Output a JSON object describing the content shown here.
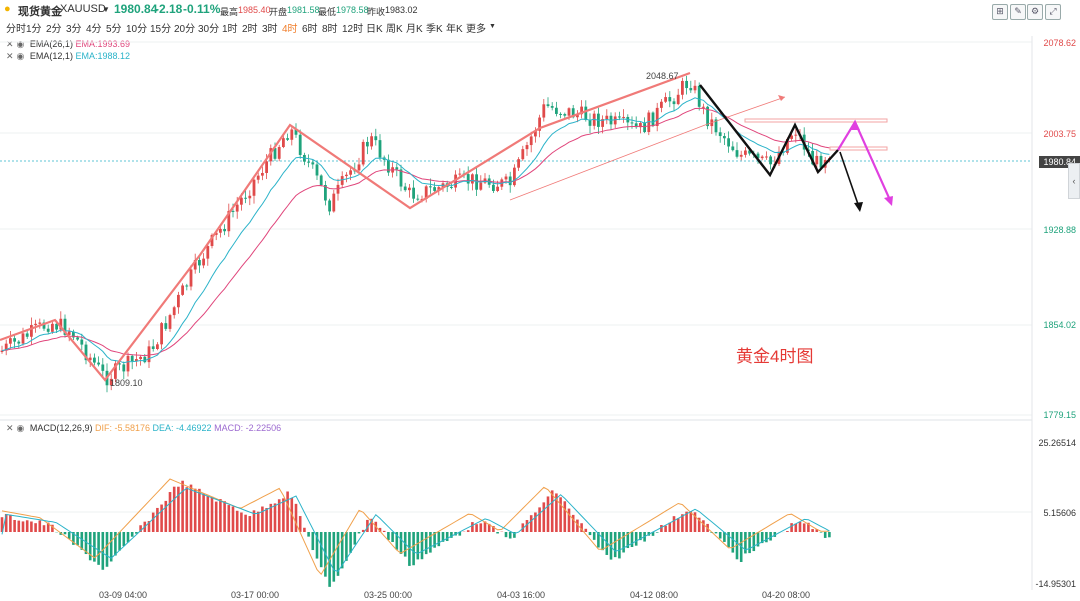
{
  "header": {
    "instrument_name": "现货黄金",
    "symbol": "XAUUSD",
    "price": "1980.84",
    "change": "-2.18",
    "change_pct": "-0.11%",
    "high_label": "最高",
    "high": "1985.40",
    "open_label": "开盘",
    "open": "1981.58",
    "low_label": "最低",
    "low": "1978.58",
    "prev_close_label": "昨收",
    "prev_close": "1983.02"
  },
  "timeframes": [
    "分时",
    "1分",
    "2分",
    "3分",
    "4分",
    "5分",
    "10分",
    "15分",
    "20分",
    "30分",
    "1时",
    "2时",
    "3时",
    "4时",
    "6时",
    "8时",
    "12时",
    "日K",
    "周K",
    "月K",
    "季K",
    "年K",
    "更多"
  ],
  "active_timeframe": "4时",
  "indicators": {
    "ema1": {
      "label": "EMA(26,1)",
      "value": "EMA:1993.69",
      "color": "#e0457b"
    },
    "ema2": {
      "label": "EMA(12,1)",
      "value": "EMA:1988.12",
      "color": "#2bb3c9"
    },
    "macd": {
      "label": "MACD(12,26,9)",
      "dif": "DIF: -5.58176",
      "dea": "DEA: -4.46922",
      "macd": "MACD: -2.22506",
      "dif_color": "#f0a04b",
      "dea_color": "#2bb3c9",
      "macd_color": "#9c6ad0"
    }
  },
  "price_axis": [
    "2078.62",
    "2003.75",
    "1928.88",
    "1854.02",
    "1779.15"
  ],
  "current_price_tag": "1980.84",
  "macd_axis": [
    "25.26514",
    "5.15606",
    "-14.95301"
  ],
  "x_axis": [
    "03-09 04:00",
    "03-17 00:00",
    "03-25 00:00",
    "04-03 16:00",
    "04-12 08:00",
    "04-20 08:00"
  ],
  "chart_tags": {
    "high": "2048.67",
    "low": "1809.10"
  },
  "annotation": "黄金4时图",
  "colors": {
    "up": "#e04a4a",
    "down": "#1fa37c",
    "accent": "#f07d2a"
  }
}
